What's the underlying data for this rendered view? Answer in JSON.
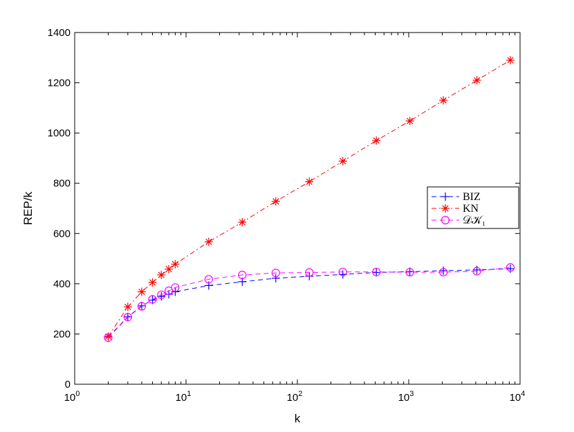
{
  "chart_data": {
    "type": "line",
    "xscale": "log",
    "xlabel": "k",
    "ylabel": "REP/k",
    "xlim": [
      1,
      10000
    ],
    "ylim": [
      0,
      1400
    ],
    "grid": false,
    "legend_position": "right",
    "x_ticks": [
      {
        "base": "10",
        "exp": "0",
        "value": 1
      },
      {
        "base": "10",
        "exp": "1",
        "value": 10
      },
      {
        "base": "10",
        "exp": "2",
        "value": 100
      },
      {
        "base": "10",
        "exp": "3",
        "value": 1000
      },
      {
        "base": "10",
        "exp": "4",
        "value": 10000
      }
    ],
    "y_ticks": [
      "0",
      "200",
      "400",
      "600",
      "800",
      "1000",
      "1200",
      "1400"
    ],
    "x": [
      2,
      3,
      4,
      5,
      6,
      7,
      8,
      16,
      32,
      64,
      128,
      256,
      512,
      1024,
      2048,
      4096,
      8192
    ],
    "series": [
      {
        "name": "BIZ",
        "color": "#0000ff",
        "marker": "plus",
        "line": "dashed",
        "values": [
          188,
          268,
          312,
          335,
          350,
          358,
          368,
          393,
          408,
          422,
          430,
          437,
          445,
          448,
          452,
          455,
          460
        ]
      },
      {
        "name": "KN",
        "color": "#ff0000",
        "marker": "asterisk",
        "line": "dashdot",
        "values": [
          190,
          308,
          368,
          405,
          435,
          458,
          478,
          567,
          645,
          728,
          806,
          888,
          970,
          1048,
          1130,
          1210,
          1290
        ]
      },
      {
        "name": "𝒟𝒦₁",
        "color": "#ff00ff",
        "marker": "circle",
        "line": "dashed",
        "values": [
          185,
          267,
          310,
          338,
          356,
          372,
          385,
          418,
          435,
          443,
          445,
          447,
          447,
          446,
          446,
          450,
          465
        ]
      }
    ]
  }
}
